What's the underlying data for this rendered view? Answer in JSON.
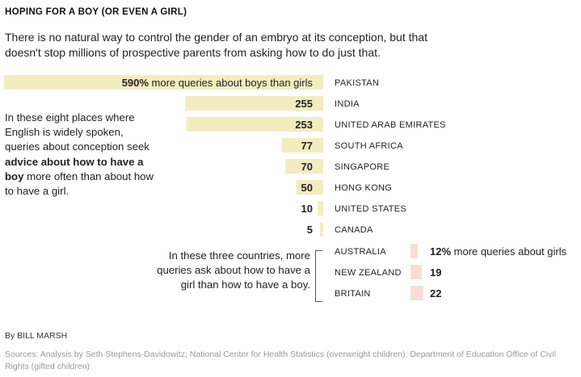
{
  "header": {
    "title": "HOPING FOR A BOY (OR EVEN A GIRL)",
    "subtitle": "There is no natural way to control the gender of an embryo at its conception, but that doesn't stop millions of prospective parents from asking how to do just that."
  },
  "notes": {
    "boys_part1": "In these eight places where English is widely spoken, queries about conception seek ",
    "boys_bold": "advice about how to have a boy",
    "boys_part2": " more often than about how to have a girl.",
    "girls": "In these three countries, more queries ask about how to have a girl than how to have a boy."
  },
  "chart_data": {
    "type": "bar",
    "orientation": "horizontal",
    "unit": "% more queries",
    "colors": {
      "boys": "#f3ecc0",
      "girls": "#fbdcd2"
    },
    "series": [
      {
        "name": "more queries about boys than girls",
        "direction": "left",
        "categories": [
          "PAKISTAN",
          "INDIA",
          "UNITED ARAB EMIRATES",
          "SOUTH AFRICA",
          "SINGAPORE",
          "HONG KONG",
          "UNITED STATES",
          "CANADA"
        ],
        "values": [
          590,
          255,
          253,
          77,
          70,
          50,
          10,
          5
        ],
        "labels": [
          "590%",
          "255",
          "253",
          "77",
          "70",
          "50",
          "10",
          "5"
        ],
        "first_label_suffix": " more queries about boys than girls"
      },
      {
        "name": "more queries about girls",
        "direction": "right",
        "categories": [
          "AUSTRALIA",
          "NEW ZEALAND",
          "BRITAIN"
        ],
        "values": [
          12,
          19,
          22
        ],
        "labels": [
          "12%",
          "19",
          "22"
        ],
        "first_label_suffix": " more queries about girls"
      }
    ]
  },
  "footer": {
    "byline": "By BILL MARSH",
    "sources": "Sources: Analysis by Seth Stephens-Davidowitz; National Center for Health Statistics (overweight children); Department of Education Office of Civil Rights (gifted children)"
  }
}
